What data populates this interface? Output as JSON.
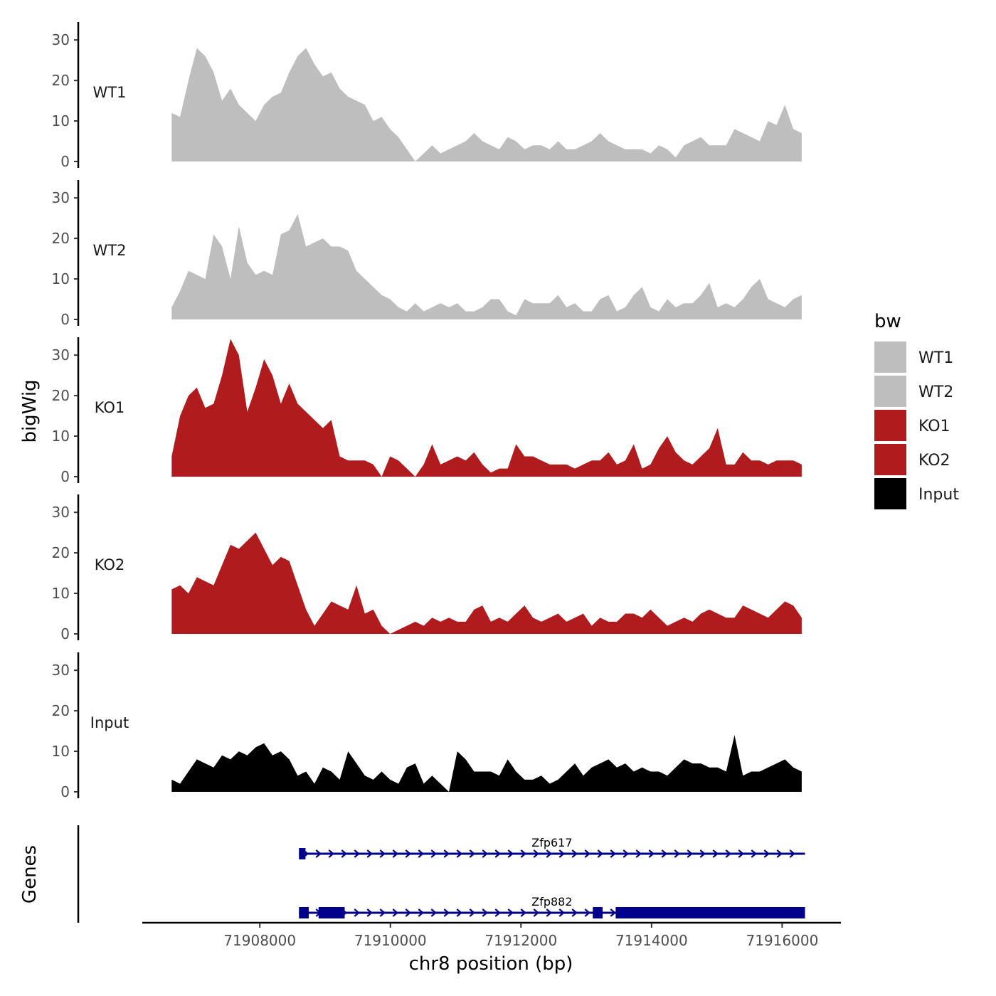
{
  "chart_data": {
    "type": "area",
    "xlabel": "chr8 position (bp)",
    "ylabel_tracks": "bigWig",
    "ylabel_genes": "Genes",
    "xlim": [
      71906200,
      71916900
    ],
    "x_ticks": [
      71908000,
      71910000,
      71912000,
      71914000,
      71916000
    ],
    "x_tick_labels": [
      "71908000",
      "71910000",
      "71912000",
      "71914000",
      "71916000"
    ],
    "ylim": [
      0,
      36
    ],
    "y_ticks": [
      0,
      10,
      20,
      30
    ],
    "y_tick_labels": [
      "0",
      "10",
      "20",
      "30"
    ],
    "region": [
      71906650,
      71916300
    ],
    "tracks": [
      {
        "name": "WT1",
        "color": "#bebebe",
        "values": [
          12,
          11,
          20,
          28,
          26,
          22,
          15,
          18,
          14,
          12,
          10,
          14,
          16,
          17,
          22,
          26,
          28,
          24,
          21,
          22,
          18,
          16,
          15,
          14,
          10,
          11,
          8,
          6,
          3,
          0,
          2,
          4,
          2,
          3,
          4,
          5,
          7,
          5,
          4,
          3,
          6,
          5,
          3,
          4,
          4,
          3,
          5,
          3,
          3,
          4,
          5,
          7,
          5,
          4,
          3,
          3,
          3,
          2,
          4,
          3,
          1,
          4,
          5,
          6,
          4,
          4,
          4,
          8,
          7,
          6,
          5,
          10,
          9,
          14,
          8,
          7
        ]
      },
      {
        "name": "WT2",
        "color": "#bebebe",
        "values": [
          3,
          7,
          12,
          11,
          10,
          21,
          18,
          10,
          23,
          14,
          11,
          12,
          11,
          21,
          22,
          26,
          18,
          19,
          20,
          18,
          18,
          17,
          12,
          10,
          8,
          6,
          5,
          3,
          2,
          4,
          2,
          3,
          4,
          3,
          4,
          2,
          2,
          3,
          5,
          5,
          2,
          1,
          5,
          4,
          4,
          4,
          6,
          3,
          4,
          2,
          2,
          5,
          6,
          2,
          3,
          6,
          8,
          3,
          2,
          5,
          3,
          4,
          4,
          6,
          9,
          3,
          4,
          3,
          5,
          8,
          10,
          5,
          4,
          3,
          5,
          6
        ]
      },
      {
        "name": "KO1",
        "color": "#b01c1e",
        "values": [
          5,
          15,
          20,
          22,
          17,
          18,
          25,
          34,
          30,
          16,
          22,
          29,
          25,
          18,
          23,
          18,
          16,
          14,
          12,
          14,
          5,
          4,
          4,
          4,
          3,
          0,
          5,
          4,
          2,
          0,
          3,
          8,
          3,
          4,
          5,
          4,
          6,
          3,
          1,
          2,
          2,
          8,
          5,
          5,
          4,
          3,
          3,
          3,
          2,
          3,
          4,
          4,
          6,
          3,
          4,
          8,
          2,
          3,
          7,
          10,
          6,
          4,
          3,
          5,
          7,
          12,
          3,
          3,
          6,
          4,
          4,
          3,
          4,
          4,
          4,
          3
        ]
      },
      {
        "name": "KO2",
        "color": "#b01c1e",
        "values": [
          11,
          12,
          10,
          14,
          13,
          12,
          17,
          22,
          21,
          23,
          25,
          21,
          17,
          19,
          18,
          12,
          6,
          2,
          5,
          8,
          7,
          6,
          12,
          5,
          6,
          2,
          0,
          1,
          2,
          3,
          2,
          4,
          3,
          4,
          3,
          3,
          6,
          7,
          3,
          4,
          3,
          5,
          7,
          4,
          3,
          4,
          5,
          3,
          4,
          5,
          2,
          4,
          3,
          3,
          5,
          5,
          4,
          6,
          4,
          2,
          3,
          4,
          3,
          5,
          6,
          5,
          4,
          4,
          7,
          6,
          5,
          4,
          6,
          8,
          7,
          4
        ]
      },
      {
        "name": "Input",
        "color": "#000000",
        "values": [
          3,
          2,
          5,
          8,
          7,
          6,
          9,
          8,
          10,
          9,
          11,
          12,
          9,
          10,
          8,
          4,
          5,
          2,
          6,
          5,
          3,
          10,
          7,
          4,
          3,
          5,
          3,
          2,
          6,
          7,
          2,
          4,
          2,
          0,
          10,
          8,
          5,
          5,
          5,
          4,
          8,
          5,
          3,
          3,
          4,
          2,
          3,
          5,
          7,
          4,
          6,
          7,
          8,
          6,
          7,
          5,
          6,
          5,
          5,
          4,
          6,
          8,
          7,
          7,
          6,
          6,
          5,
          14,
          4,
          5,
          5,
          6,
          7,
          8,
          6,
          5
        ]
      }
    ],
    "legend": {
      "title": "bw",
      "position": "right",
      "entries": [
        {
          "label": "WT1",
          "color": "#bebebe"
        },
        {
          "label": "WT2",
          "color": "#bebebe"
        },
        {
          "label": "KO1",
          "color": "#b01c1e"
        },
        {
          "label": "KO2",
          "color": "#b01c1e"
        },
        {
          "label": "Input",
          "color": "#000000"
        }
      ]
    },
    "genes": [
      {
        "name": "Zfp617",
        "start": 71908600,
        "end": 71916350,
        "strand": "+",
        "color": "#00008b",
        "exons": [
          [
            71908600,
            71908700
          ]
        ]
      },
      {
        "name": "Zfp882",
        "start": 71908600,
        "end": 71916350,
        "strand": "+",
        "color": "#00008b",
        "exons": [
          [
            71908600,
            71908750
          ],
          [
            71908900,
            71909300
          ],
          [
            71913100,
            71913250
          ],
          [
            71913450,
            71916350
          ]
        ]
      }
    ]
  }
}
